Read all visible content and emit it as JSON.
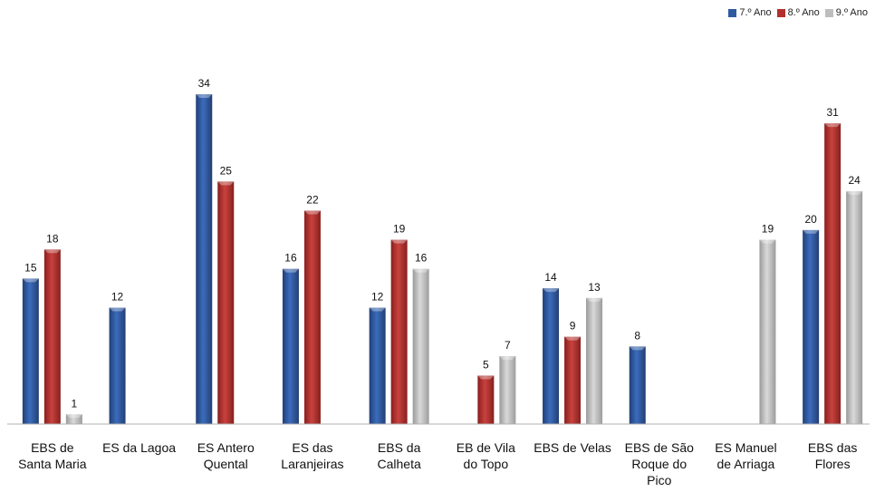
{
  "colors": {
    "s1": "#2e5aa0",
    "s2": "#b2302d",
    "s3": "#bdbdbd"
  },
  "chart_data": {
    "type": "bar",
    "categories": [
      "EBS de\nSanta Maria",
      "ES da Lagoa",
      "ES Antero\nQuental",
      "ES das\nLaranjeiras",
      "EBS da\nCalheta",
      "EB de Vila\ndo Topo",
      "EBS de Velas",
      "EBS de São\nRoque do\nPico",
      "ES Manuel\nde Arriaga",
      "EBS das\nFlores"
    ],
    "series": [
      {
        "name": "7.º Ano",
        "values": [
          15,
          12,
          34,
          16,
          12,
          null,
          14,
          8,
          null,
          20
        ]
      },
      {
        "name": "8.º Ano",
        "values": [
          18,
          null,
          25,
          22,
          19,
          5,
          9,
          null,
          null,
          31
        ]
      },
      {
        "name": "9.º Ano",
        "values": [
          1,
          null,
          null,
          null,
          16,
          7,
          13,
          null,
          19,
          24
        ]
      }
    ],
    "ylim": [
      0,
      34
    ],
    "legend_position": "top-right",
    "grid": false
  }
}
